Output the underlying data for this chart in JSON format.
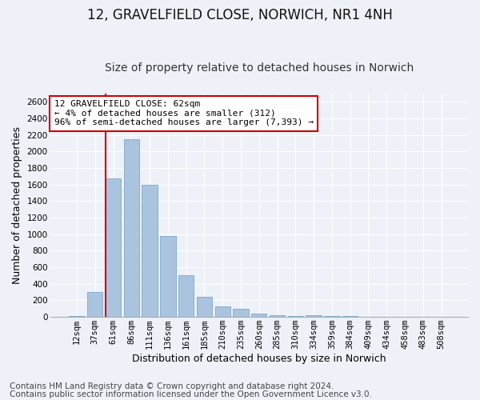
{
  "title_line1": "12, GRAVELFIELD CLOSE, NORWICH, NR1 4NH",
  "title_line2": "Size of property relative to detached houses in Norwich",
  "xlabel": "Distribution of detached houses by size in Norwich",
  "ylabel": "Number of detached properties",
  "categories": [
    "12sqm",
    "37sqm",
    "61sqm",
    "86sqm",
    "111sqm",
    "136sqm",
    "161sqm",
    "185sqm",
    "210sqm",
    "235sqm",
    "260sqm",
    "285sqm",
    "310sqm",
    "334sqm",
    "359sqm",
    "384sqm",
    "409sqm",
    "434sqm",
    "458sqm",
    "483sqm",
    "508sqm"
  ],
  "values": [
    15,
    300,
    1670,
    2150,
    1595,
    975,
    500,
    245,
    125,
    100,
    38,
    20,
    8,
    20,
    10,
    8,
    5,
    5,
    3,
    2,
    5
  ],
  "bar_color": "#aac4e0",
  "bar_edge_color": "#6a9fc0",
  "vline_x_idx": 2,
  "annotation_title": "12 GRAVELFIELD CLOSE: 62sqm",
  "annotation_line2": "← 4% of detached houses are smaller (312)",
  "annotation_line3": "96% of semi-detached houses are larger (7,393) →",
  "annotation_box_color": "#ffffff",
  "annotation_box_edge": "#cc0000",
  "vline_color": "#cc0000",
  "footer_line1": "Contains HM Land Registry data © Crown copyright and database right 2024.",
  "footer_line2": "Contains public sector information licensed under the Open Government Licence v3.0.",
  "ylim": [
    0,
    2700
  ],
  "yticks": [
    0,
    200,
    400,
    600,
    800,
    1000,
    1200,
    1400,
    1600,
    1800,
    2000,
    2200,
    2400,
    2600
  ],
  "bg_color": "#eef2f8",
  "grid_color": "#ffffff",
  "title_fontsize": 12,
  "subtitle_fontsize": 10,
  "axis_label_fontsize": 9,
  "tick_fontsize": 7.5,
  "footer_fontsize": 7.5,
  "annotation_fontsize": 8
}
